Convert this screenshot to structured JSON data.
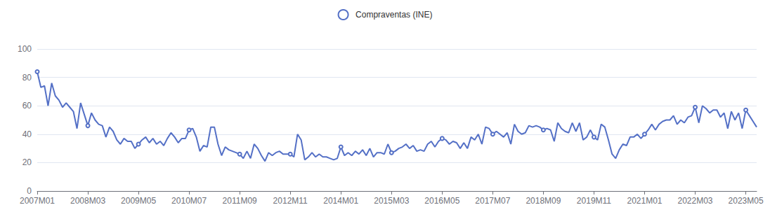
{
  "chart_data": {
    "type": "line",
    "categories": [
      "2007M01",
      null,
      null,
      null,
      null,
      null,
      null,
      null,
      null,
      null,
      null,
      null,
      null,
      null,
      "2008M03",
      null,
      null,
      null,
      null,
      null,
      null,
      null,
      null,
      null,
      null,
      null,
      null,
      null,
      "2009M05",
      null,
      null,
      null,
      null,
      null,
      null,
      null,
      null,
      null,
      null,
      null,
      null,
      null,
      "2010M07",
      null,
      null,
      null,
      null,
      null,
      null,
      null,
      null,
      null,
      null,
      null,
      null,
      null,
      "2011M09",
      null,
      null,
      null,
      null,
      null,
      null,
      null,
      null,
      null,
      null,
      null,
      null,
      null,
      "2012M11",
      null,
      null,
      null,
      null,
      null,
      null,
      null,
      null,
      null,
      null,
      null,
      null,
      null,
      "2014M01",
      null,
      null,
      null,
      null,
      null,
      null,
      null,
      null,
      null,
      null,
      null,
      null,
      null,
      "2015M03",
      null,
      null,
      null,
      null,
      null,
      null,
      null,
      null,
      null,
      null,
      null,
      null,
      null,
      "2016M05",
      null,
      null,
      null,
      null,
      null,
      null,
      null,
      null,
      null,
      null,
      null,
      null,
      null,
      "2017M07",
      null,
      null,
      null,
      null,
      null,
      null,
      null,
      null,
      null,
      null,
      null,
      null,
      null,
      "2018M09",
      null,
      null,
      null,
      null,
      null,
      null,
      null,
      null,
      null,
      null,
      null,
      null,
      null,
      "2019M11",
      null,
      null,
      null,
      null,
      null,
      null,
      null,
      null,
      null,
      null,
      null,
      null,
      null,
      "2021M01",
      null,
      null,
      null,
      null,
      null,
      null,
      null,
      null,
      null,
      null,
      null,
      null,
      null,
      "2022M03",
      null,
      null,
      null,
      null,
      null,
      null,
      null,
      null,
      null,
      null,
      null,
      null,
      null,
      "2023M05",
      null,
      null,
      null
    ],
    "series": [
      {
        "name": "Compraventas (INE)",
        "color": "#5470c6",
        "marker": "emptyCircle",
        "values": [
          84,
          73,
          74,
          60,
          76,
          67,
          64,
          59,
          62,
          59,
          56,
          44,
          62,
          54,
          46,
          55,
          50,
          47,
          46,
          38,
          45,
          42,
          36,
          33,
          37,
          35,
          35,
          30,
          33,
          36,
          38,
          34,
          37,
          33,
          35,
          32,
          37,
          41,
          38,
          34,
          37,
          37,
          43,
          44,
          38,
          28,
          32,
          31,
          45,
          45,
          33,
          25,
          31,
          29,
          28,
          27,
          26,
          23,
          28,
          23,
          33,
          30,
          25,
          21,
          27,
          25,
          27,
          28,
          26,
          26,
          26,
          24,
          40,
          36,
          22,
          24,
          27,
          24,
          26,
          24,
          24,
          23,
          22,
          23,
          31,
          25,
          27,
          25,
          28,
          26,
          29,
          25,
          30,
          24,
          27,
          27,
          26,
          33,
          27,
          28,
          30,
          31,
          33,
          30,
          32,
          28,
          29,
          28,
          33,
          35,
          31,
          35,
          37,
          36,
          33,
          35,
          34,
          30,
          34,
          30,
          38,
          36,
          40,
          33,
          45,
          44,
          40,
          42,
          40,
          38,
          41,
          33,
          47,
          42,
          40,
          41,
          46,
          45,
          46,
          45,
          43,
          44,
          43,
          35,
          48,
          44,
          42,
          41,
          48,
          42,
          48,
          36,
          38,
          43,
          38,
          36,
          47,
          45,
          36,
          26,
          23,
          29,
          33,
          32,
          38,
          38,
          40,
          37,
          40,
          43,
          47,
          43,
          47,
          49,
          50,
          50,
          53,
          47,
          50,
          48,
          52,
          53,
          59,
          48,
          60,
          58,
          55,
          57,
          57,
          52,
          55,
          44,
          56,
          50,
          55,
          44,
          57,
          53,
          49,
          45
        ]
      }
    ],
    "ylim": [
      0,
      100
    ],
    "yticks": [
      0,
      20,
      40,
      60,
      80,
      100
    ],
    "grid": true,
    "legend": "top"
  }
}
